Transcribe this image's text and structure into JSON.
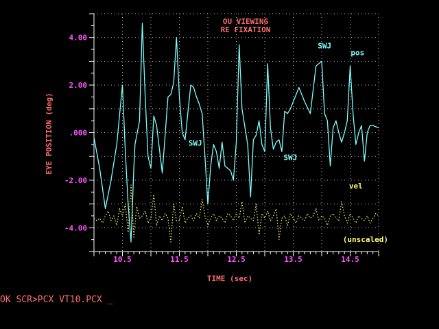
{
  "chart_data": {
    "type": "line",
    "title": "OU VIEWING",
    "subtitle": "RE FIXATION",
    "xlabel": "TIME (sec)",
    "ylabel": "EYE POSITION (deg)",
    "xlim": [
      10.0,
      15.0
    ],
    "ylim": [
      -5.0,
      5.0
    ],
    "x_ticks": [
      10.5,
      11.5,
      12.5,
      13.5,
      14.5
    ],
    "x_tick_labels": [
      "10.5",
      "11.5",
      "12.5",
      "13.5",
      "14.5"
    ],
    "y_ticks": [
      4,
      2,
      0,
      -2,
      -4
    ],
    "y_tick_labels": [
      "4.00",
      "2.00",
      ".000",
      "-2.00",
      "-4.00"
    ],
    "grid": true,
    "colors": {
      "background": "#000000",
      "axis": "#ffffff",
      "grid": "#c8c8c8",
      "title": "#ff6e6e",
      "labels": "#ff6e6e",
      "ticks": "#ff55ff",
      "position": "#7fffff",
      "velocity": "#ffff66",
      "annotation": "#7fffff"
    },
    "series": [
      {
        "name": "pos",
        "style": "solid",
        "x": [
          10.0,
          10.1,
          10.2,
          10.3,
          10.4,
          10.5,
          10.55,
          10.6,
          10.65,
          10.7,
          10.72,
          10.8,
          10.85,
          10.9,
          10.95,
          11.0,
          11.05,
          11.1,
          11.2,
          11.3,
          11.35,
          11.4,
          11.45,
          11.5,
          11.55,
          11.6,
          11.7,
          11.75,
          11.8,
          11.85,
          11.9,
          11.95,
          12.0,
          12.05,
          12.1,
          12.15,
          12.2,
          12.25,
          12.3,
          12.4,
          12.45,
          12.5,
          12.55,
          12.6,
          12.7,
          12.75,
          12.8,
          12.85,
          12.9,
          12.95,
          13.0,
          13.05,
          13.1,
          13.15,
          13.2,
          13.25,
          13.3,
          13.35,
          13.4,
          13.45,
          13.5,
          13.55,
          13.6,
          13.7,
          13.8,
          13.9,
          14.0,
          14.05,
          14.1,
          14.15,
          14.2,
          14.25,
          14.3,
          14.35,
          14.4,
          14.45,
          14.5,
          14.55,
          14.6,
          14.65,
          14.7,
          14.75,
          14.8,
          14.85,
          14.9,
          15.0
        ],
        "y": [
          -0.2,
          -1.5,
          -3.2,
          -2.0,
          -0.5,
          2.0,
          -0.8,
          -3.0,
          -4.6,
          -1.5,
          -0.5,
          0.5,
          4.6,
          1.5,
          -1.0,
          -1.5,
          0.7,
          0.3,
          -1.7,
          1.5,
          1.6,
          2.1,
          4.0,
          1.5,
          0.0,
          -0.3,
          2.0,
          1.9,
          1.5,
          1.2,
          0.8,
          -1.0,
          -3.0,
          -1.4,
          -0.5,
          -0.8,
          -1.5,
          -0.4,
          -1.4,
          -1.6,
          -2.0,
          -0.4,
          3.7,
          1.0,
          -0.5,
          -2.7,
          -0.3,
          -0.1,
          0.5,
          -0.5,
          -0.8,
          2.9,
          0.2,
          -0.7,
          -0.4,
          -0.3,
          -0.8,
          0.9,
          0.8,
          1.0,
          1.3,
          1.6,
          1.9,
          1.3,
          0.8,
          2.8,
          3.0,
          0.8,
          0.5,
          -1.4,
          0.2,
          0.5,
          0.0,
          -0.4,
          0.0,
          0.5,
          2.8,
          0.8,
          -0.5,
          0.0,
          0.3,
          -1.2,
          0.0,
          0.3,
          0.3,
          0.2
        ]
      },
      {
        "name": "vel",
        "style": "dotted",
        "x": [
          10.0,
          10.05,
          10.1,
          10.15,
          10.2,
          10.25,
          10.3,
          10.35,
          10.4,
          10.45,
          10.5,
          10.55,
          10.6,
          10.65,
          10.7,
          10.75,
          10.8,
          10.85,
          10.9,
          10.95,
          11.0,
          11.05,
          11.1,
          11.15,
          11.2,
          11.25,
          11.3,
          11.35,
          11.4,
          11.45,
          11.5,
          11.55,
          11.6,
          11.65,
          11.7,
          11.75,
          11.8,
          11.85,
          11.9,
          11.95,
          12.0,
          12.05,
          12.1,
          12.15,
          12.2,
          12.25,
          12.3,
          12.35,
          12.4,
          12.45,
          12.5,
          12.55,
          12.6,
          12.65,
          12.7,
          12.75,
          12.8,
          12.85,
          12.9,
          12.95,
          13.0,
          13.05,
          13.1,
          13.15,
          13.2,
          13.25,
          13.3,
          13.35,
          13.4,
          13.45,
          13.5,
          13.55,
          13.6,
          13.65,
          13.7,
          13.75,
          13.8,
          13.85,
          13.9,
          13.95,
          14.0,
          14.05,
          14.1,
          14.15,
          14.2,
          14.25,
          14.3,
          14.35,
          14.4,
          14.45,
          14.5,
          14.55,
          14.6,
          14.65,
          14.7,
          14.75,
          14.8,
          14.85,
          14.9,
          14.95,
          15.0
        ],
        "y": [
          -3.6,
          -3.7,
          -3.6,
          -3.8,
          -3.5,
          -3.3,
          -3.7,
          -3.5,
          -3.9,
          -3.2,
          -3.5,
          -3.0,
          -4.2,
          -2.2,
          -4.4,
          -3.1,
          -3.6,
          -3.5,
          -3.3,
          -3.8,
          -3.6,
          -2.6,
          -3.9,
          -3.5,
          -3.7,
          -3.4,
          -3.6,
          -4.6,
          -3.0,
          -3.7,
          -3.7,
          -3.1,
          -3.8,
          -3.6,
          -3.5,
          -3.7,
          -3.4,
          -3.6,
          -2.8,
          -3.5,
          -3.9,
          -3.6,
          -3.4,
          -3.7,
          -3.5,
          -3.6,
          -3.8,
          -3.4,
          -3.5,
          -3.7,
          -3.4,
          -3.6,
          -2.9,
          -3.8,
          -3.5,
          -3.6,
          -3.7,
          -3.0,
          -4.3,
          -3.4,
          -3.6,
          -3.3,
          -3.7,
          -3.5,
          -3.2,
          -4.5,
          -3.6,
          -3.5,
          -3.9,
          -3.4,
          -3.6,
          -3.8,
          -3.5,
          -3.6,
          -3.7,
          -3.4,
          -3.6,
          -3.5,
          -3.2,
          -3.7,
          -3.5,
          -3.6,
          -3.9,
          -3.5,
          -3.4,
          -3.6,
          -3.7,
          -2.9,
          -3.5,
          -3.8,
          -3.4,
          -3.6,
          -3.8,
          -3.5,
          -3.6,
          -3.7,
          -3.5,
          -3.8,
          -3.6,
          -3.4,
          -3.5
        ]
      }
    ],
    "annotations": [
      {
        "text": "SWJ",
        "x": 11.78,
        "y": -0.55,
        "color": "#7fffff"
      },
      {
        "text": "SWJ",
        "x": 13.45,
        "y": -1.15,
        "color": "#7fffff"
      },
      {
        "text": "SWJ",
        "x": 14.05,
        "y": 3.55,
        "color": "#7fffff"
      },
      {
        "text": "pos",
        "x": 14.63,
        "y": 3.25,
        "color": "#7fffff"
      },
      {
        "text": "vel",
        "x": 14.6,
        "y": -2.35,
        "color": "#ffff66"
      },
      {
        "text": "(unscaled)",
        "x": 14.77,
        "y": -4.6,
        "color": "#ffff66"
      }
    ]
  },
  "prompt": "OK SCR>PCX VT10.PCX _"
}
